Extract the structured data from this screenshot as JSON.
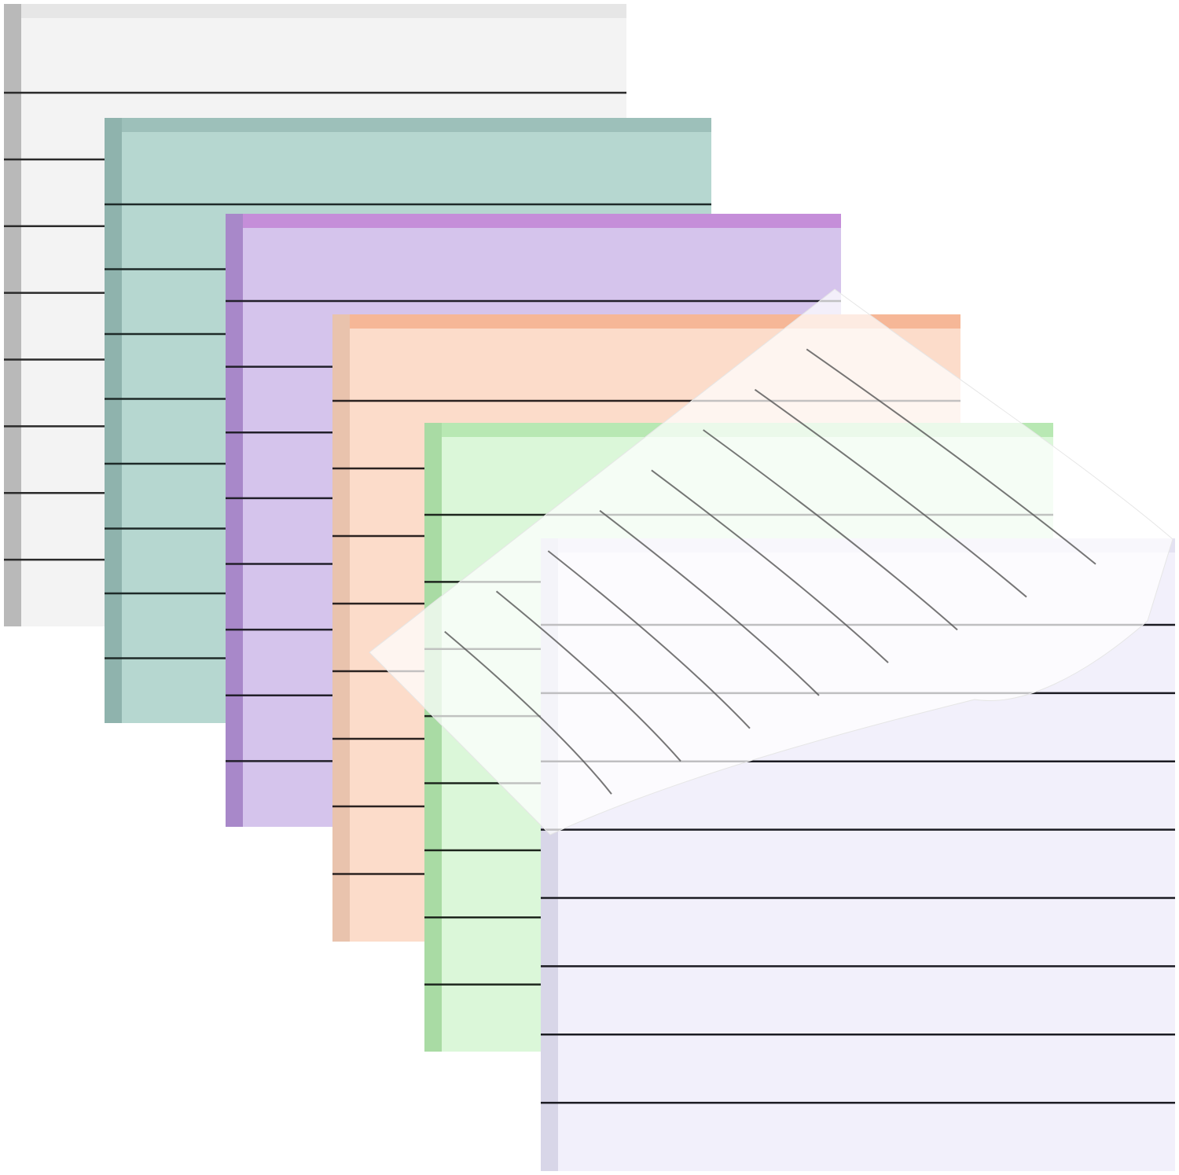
{
  "product": {
    "pads": [
      {
        "id": "white",
        "face": "#f3f3f3",
        "top_edge": "#e6e6e6",
        "side_edge": "#b9b9b9",
        "line": "#2a2a2a",
        "lines": 8
      },
      {
        "id": "teal",
        "face": "#b6d7d0",
        "top_edge": "#9dc0ba",
        "side_edge": "#8fb3ad",
        "line": "#1e2a28",
        "lines": 8
      },
      {
        "id": "purple",
        "face": "#d5c4ec",
        "top_edge": "#c58ed9",
        "side_edge": "#a888c9",
        "line": "#22202a",
        "lines": 8
      },
      {
        "id": "peach",
        "face": "#fcdcca",
        "top_edge": "#f6b797",
        "side_edge": "#e9c3ad",
        "line": "#2a2220",
        "lines": 8
      },
      {
        "id": "green",
        "face": "#dbf7d9",
        "top_edge": "#b8e8b3",
        "side_edge": "#a9dba4",
        "line": "#1d261d",
        "lines": 8
      },
      {
        "id": "lavender",
        "face": "#f2f0fb",
        "top_edge": "#e4e2f2",
        "side_edge": "#d8d6e8",
        "line": "#1b1b22",
        "lines": 8
      }
    ],
    "peeled_sheet": {
      "fill": "#ffffff",
      "opacity": 0.72,
      "line": "#555555",
      "lines": 8
    },
    "background": "#ffffff"
  }
}
